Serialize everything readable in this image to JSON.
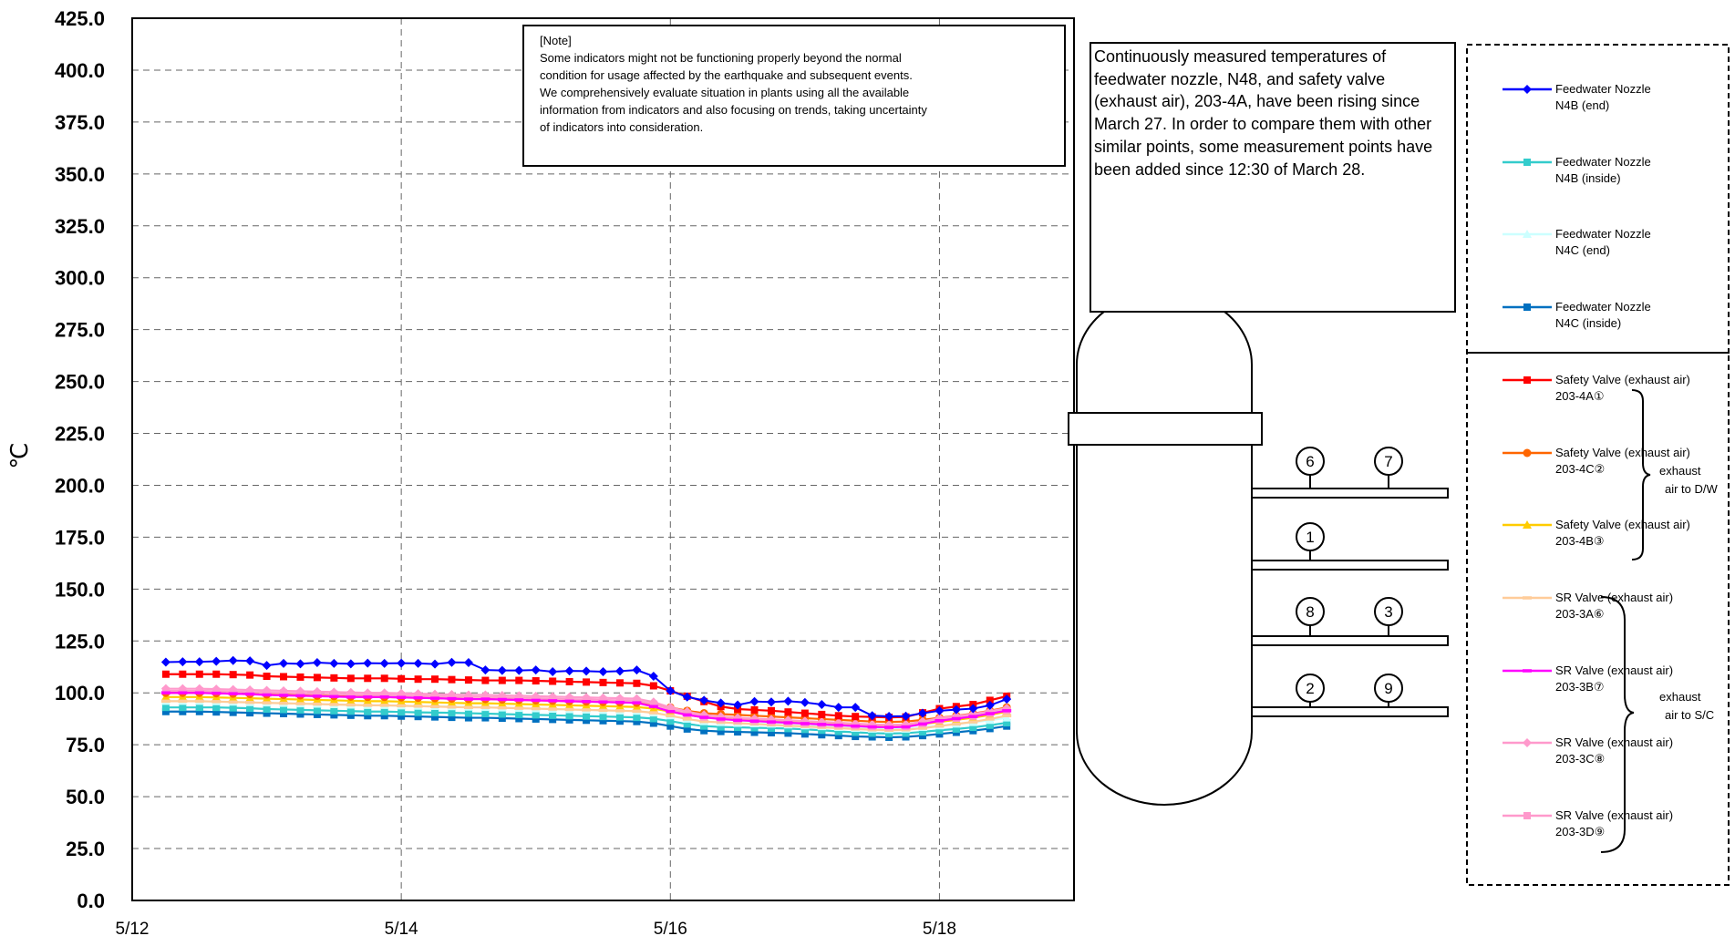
{
  "note": {
    "heading": "[Note]",
    "lines": [
      "Some indicators might not be functioning properly beyond the normal",
      "condition for usage affected by the earthquake and subsequent events.",
      "We comprehensively evaluate situation in plants using all the available",
      "information from indicators and also focusing on trends, taking uncertainty",
      "of indicators into consideration."
    ]
  },
  "description": "Continuously measured temperatures of feedwater nozzle, N48, and safety valve (exhaust air), 203-4A, have been rising since March 27. In order to compare them with other similar points, some measurement points have been added since 12:30 of March 28.",
  "diagram": {
    "upper_labels": [
      "6",
      "7"
    ],
    "mid_label": "1",
    "lower1_labels": [
      "8",
      "3"
    ],
    "lower2_labels": [
      "2",
      "9"
    ]
  },
  "legend_groups": {
    "dw_label": [
      "exhaust",
      "air to D/W"
    ],
    "sc_label": [
      "exhaust",
      "air to S/C"
    ]
  },
  "chart_data": {
    "type": "line",
    "ylabel": "℃",
    "ylim": [
      0,
      425
    ],
    "yticks": [
      "0.0",
      "25.0",
      "50.0",
      "75.0",
      "100.0",
      "125.0",
      "150.0",
      "175.0",
      "200.0",
      "225.0",
      "250.0",
      "275.0",
      "300.0",
      "325.0",
      "350.0",
      "375.0",
      "400.0",
      "425.0"
    ],
    "xticks": [
      "5/12",
      "5/14",
      "5/16",
      "5/18"
    ],
    "xlim_days": [
      0,
      7
    ],
    "grid": "dashed",
    "x_days": [
      0.25,
      0.375,
      0.5,
      0.625,
      0.75,
      0.875,
      1.0,
      1.125,
      1.25,
      1.375,
      1.5,
      1.625,
      1.75,
      1.875,
      2.0,
      2.125,
      2.25,
      2.375,
      2.5,
      2.625,
      2.75,
      2.875,
      3.0,
      3.125,
      3.25,
      3.375,
      3.5,
      3.625,
      3.75,
      3.875,
      4.0,
      4.125,
      4.25,
      4.375,
      4.5,
      4.625,
      4.75,
      4.875,
      5.0,
      5.125,
      5.25,
      5.375,
      5.5,
      5.625,
      5.75,
      5.875,
      6.0,
      6.125,
      6.25,
      6.375,
      6.5
    ],
    "series": [
      {
        "name": "Feedwater Nozzle N4B (end)",
        "line1": "Feedwater Nozzle",
        "line2": "N4B (end)",
        "color": "#0000ff",
        "marker": "diamond",
        "values": [
          114.8,
          115.0,
          115.0,
          115.2,
          115.6,
          115.4,
          113.2,
          114.2,
          114.0,
          114.6,
          114.2,
          114.0,
          114.3,
          114.2,
          114.3,
          114.2,
          113.9,
          114.7,
          114.6,
          111.0,
          110.8,
          110.8,
          111.0,
          110.2,
          110.6,
          110.5,
          110.2,
          110.5,
          111.0,
          108.0,
          101.0,
          98.0,
          96.4,
          95.1,
          94.2,
          95.8,
          95.6,
          96.0,
          95.4,
          94.4,
          93.0,
          93.0,
          89.0,
          88.7,
          88.8,
          90.2,
          91.4,
          91.9,
          92.4,
          94.0,
          97.0
        ]
      },
      {
        "name": "Feedwater Nozzle N4B (inside)",
        "line1": "Feedwater Nozzle",
        "line2": "N4B (inside)",
        "color": "#33cccc",
        "marker": "square",
        "values": [
          93.0,
          93.0,
          93.0,
          93.0,
          92.8,
          92.6,
          92.2,
          92.0,
          91.8,
          91.6,
          91.4,
          91.2,
          91.0,
          91.0,
          90.8,
          90.6,
          90.5,
          90.4,
          90.2,
          90.0,
          89.8,
          89.6,
          89.4,
          89.2,
          89.0,
          88.8,
          88.6,
          88.4,
          88.2,
          87.6,
          86.4,
          85.0,
          84.0,
          83.6,
          83.4,
          83.2,
          83.0,
          82.8,
          82.4,
          82.0,
          81.4,
          81.0,
          80.6,
          80.4,
          80.6,
          81.2,
          82.0,
          82.6,
          83.4,
          84.4,
          85.6
        ]
      },
      {
        "name": "Feedwater Nozzle N4C (end)",
        "line1": "Feedwater Nozzle",
        "line2": "N4C (end)",
        "color": "#ccffff",
        "marker": "triangle",
        "values": [
          96.0,
          96.0,
          96.0,
          95.8,
          95.6,
          95.4,
          95.2,
          95.0,
          94.8,
          94.6,
          94.4,
          94.2,
          94.0,
          94.0,
          93.8,
          93.6,
          93.5,
          93.4,
          93.2,
          93.0,
          92.8,
          92.6,
          92.4,
          92.2,
          92.0,
          91.8,
          91.6,
          91.4,
          91.2,
          90.4,
          89.0,
          87.4,
          86.2,
          85.8,
          85.4,
          85.2,
          85.0,
          84.6,
          84.2,
          83.8,
          83.4,
          83.0,
          82.6,
          82.4,
          82.6,
          83.4,
          84.2,
          85.0,
          85.8,
          86.8,
          88.0
        ]
      },
      {
        "name": "Feedwater Nozzle N4C (inside)",
        "line1": "Feedwater Nozzle",
        "line2": "N4C (inside)",
        "color": "#0070c0",
        "marker": "square",
        "values": [
          91.0,
          91.0,
          91.0,
          90.8,
          90.6,
          90.4,
          90.2,
          90.0,
          89.8,
          89.6,
          89.4,
          89.2,
          89.0,
          89.0,
          88.8,
          88.6,
          88.4,
          88.2,
          88.0,
          88.0,
          87.8,
          87.6,
          87.4,
          87.2,
          87.0,
          86.8,
          86.6,
          86.4,
          86.2,
          85.4,
          84.0,
          82.6,
          81.8,
          81.4,
          81.2,
          81.0,
          80.8,
          80.6,
          80.2,
          79.8,
          79.4,
          79.0,
          78.8,
          78.6,
          78.8,
          79.4,
          80.2,
          81.0,
          81.8,
          82.8,
          84.0
        ]
      },
      {
        "name": "Safety Valve (exhaust air) 203-4A①",
        "line1": "Safety Valve (exhaust air)",
        "line2": "203-4A①",
        "color": "#ff0000",
        "marker": "square",
        "values": [
          109.0,
          109.0,
          109.0,
          109.0,
          108.8,
          108.6,
          108.0,
          107.8,
          107.6,
          107.4,
          107.2,
          107.0,
          107.0,
          107.0,
          106.8,
          106.6,
          106.6,
          106.4,
          106.2,
          106.0,
          106.0,
          106.0,
          105.8,
          105.6,
          105.4,
          105.2,
          105.0,
          104.8,
          104.6,
          103.4,
          101.0,
          98.4,
          95.8,
          93.4,
          92.2,
          91.8,
          91.4,
          90.8,
          90.2,
          89.6,
          89.0,
          88.6,
          88.4,
          88.2,
          88.4,
          90.4,
          92.4,
          93.4,
          94.4,
          96.4,
          98.4
        ]
      },
      {
        "name": "Safety Valve (exhaust air) 203-4C②",
        "line1": "Safety Valve (exhaust air)",
        "line2": "203-4C②",
        "color": "#ff6600",
        "marker": "circle",
        "values": [
          100.0,
          100.0,
          100.0,
          99.8,
          99.6,
          99.4,
          99.2,
          99.0,
          98.8,
          98.6,
          98.4,
          98.2,
          98.0,
          98.0,
          97.8,
          97.6,
          97.4,
          97.2,
          97.0,
          97.0,
          96.8,
          96.6,
          96.4,
          96.2,
          96.0,
          95.8,
          95.6,
          95.4,
          95.2,
          94.4,
          93.0,
          91.4,
          90.2,
          89.8,
          89.4,
          89.0,
          88.6,
          88.2,
          87.8,
          87.4,
          87.0,
          86.6,
          86.2,
          86.0,
          86.2,
          87.0,
          88.0,
          89.0,
          90.0,
          91.4,
          93.0
        ]
      },
      {
        "name": "Safety Valve (exhaust air) 203-4B③",
        "line1": "Safety Valve (exhaust air)",
        "line2": "203-4B③",
        "color": "#ffcc00",
        "marker": "triangle",
        "values": [
          98.0,
          98.0,
          98.0,
          97.8,
          97.6,
          97.4,
          97.2,
          97.0,
          96.8,
          96.6,
          96.4,
          96.2,
          96.0,
          96.0,
          95.8,
          95.6,
          95.4,
          95.2,
          95.0,
          95.0,
          94.8,
          94.6,
          94.4,
          94.2,
          94.0,
          93.8,
          93.6,
          93.4,
          93.2,
          92.4,
          91.0,
          89.4,
          88.2,
          87.8,
          87.4,
          87.0,
          86.6,
          86.2,
          85.8,
          85.4,
          85.0,
          84.6,
          84.2,
          84.0,
          84.2,
          85.0,
          86.0,
          87.0,
          88.0,
          89.4,
          91.0
        ]
      },
      {
        "name": "SR Valve (exhaust air) 203-3A⑥",
        "line1": "SR Valve (exhaust air)",
        "line2": "203-3A⑥",
        "color": "#ffcc99",
        "marker": "dash",
        "values": [
          96.0,
          96.0,
          96.0,
          95.8,
          95.6,
          95.4,
          95.2,
          95.0,
          94.8,
          94.6,
          94.4,
          94.2,
          94.0,
          94.0,
          93.8,
          93.6,
          93.4,
          93.2,
          93.0,
          93.0,
          92.8,
          92.6,
          92.4,
          92.2,
          92.0,
          91.8,
          91.6,
          91.4,
          91.2,
          90.4,
          89.0,
          87.4,
          86.2,
          85.8,
          85.4,
          85.0,
          84.6,
          84.2,
          83.8,
          83.4,
          83.0,
          82.6,
          82.2,
          82.0,
          82.2,
          83.0,
          84.0,
          85.0,
          86.0,
          87.4,
          89.0
        ]
      },
      {
        "name": "SR Valve (exhaust air) 203-3B⑦",
        "line1": "SR Valve (exhaust air)",
        "line2": "203-3B⑦",
        "color": "#ff00ff",
        "marker": "dash",
        "values": [
          100.0,
          100.0,
          100.0,
          99.8,
          99.6,
          99.4,
          99.0,
          98.8,
          98.6,
          98.4,
          98.2,
          98.0,
          98.0,
          98.0,
          97.8,
          97.6,
          97.4,
          97.2,
          97.0,
          97.0,
          96.8,
          96.6,
          96.4,
          96.2,
          96.0,
          95.8,
          95.6,
          95.4,
          95.2,
          93.4,
          91.0,
          89.4,
          88.2,
          87.4,
          86.8,
          86.4,
          86.0,
          85.6,
          85.2,
          84.8,
          84.4,
          84.0,
          83.6,
          83.4,
          83.6,
          85.0,
          86.6,
          87.6,
          88.6,
          90.0,
          91.4
        ]
      },
      {
        "name": "SR Valve (exhaust air) 203-3C⑧",
        "line1": "SR Valve (exhaust air)",
        "line2": "203-3C⑧",
        "color": "#ff99cc",
        "marker": "diamond",
        "values": [
          102.0,
          102.0,
          102.0,
          101.8,
          101.6,
          101.4,
          101.2,
          101.0,
          100.8,
          100.6,
          100.4,
          100.2,
          100.0,
          100.0,
          99.8,
          99.6,
          99.4,
          99.2,
          99.0,
          99.0,
          98.8,
          98.6,
          98.4,
          98.2,
          98.0,
          97.8,
          97.6,
          97.4,
          97.2,
          95.6,
          93.0,
          91.0,
          89.4,
          88.6,
          88.0,
          87.6,
          87.2,
          86.8,
          86.4,
          86.0,
          85.6,
          85.2,
          84.8,
          84.6,
          84.8,
          86.2,
          87.8,
          88.8,
          89.8,
          91.2,
          92.6
        ]
      },
      {
        "name": "SR Valve (exhaust air) 203-3D⑨",
        "line1": "SR Valve (exhaust air)",
        "line2": "203-3D⑨",
        "color": "#ff99cc",
        "marker": "square",
        "values": [
          101.0,
          101.0,
          101.0,
          100.8,
          100.6,
          100.4,
          100.2,
          100.0,
          99.8,
          99.6,
          99.4,
          99.2,
          99.0,
          99.0,
          98.8,
          98.6,
          98.4,
          98.2,
          98.0,
          98.0,
          97.8,
          97.6,
          97.4,
          97.2,
          97.0,
          96.8,
          96.6,
          96.4,
          96.2,
          94.6,
          92.0,
          90.0,
          88.4,
          87.6,
          87.0,
          86.6,
          86.2,
          85.8,
          85.4,
          85.0,
          84.6,
          84.2,
          83.8,
          83.6,
          83.8,
          85.2,
          86.8,
          87.8,
          88.8,
          90.2,
          91.6
        ]
      }
    ]
  }
}
